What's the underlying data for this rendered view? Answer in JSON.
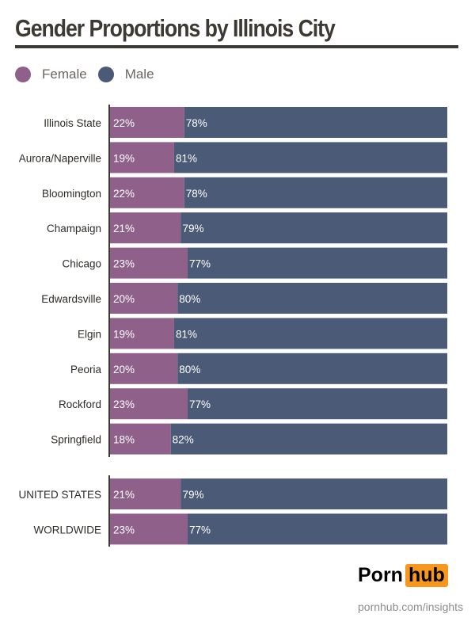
{
  "title": "Gender Proportions by Illinois City",
  "chart_data": {
    "type": "bar",
    "stacked": true,
    "orientation": "horizontal",
    "title": "Gender Proportions by Illinois City",
    "legend": {
      "position": "top-left",
      "entries": [
        "Female",
        "Male"
      ]
    },
    "colors": {
      "Female": "#8f618a",
      "Male": "#4b5a76"
    },
    "categories": [
      "Illinois State",
      "Aurora/Naperville",
      "Bloomington",
      "Champaign",
      "Chicago",
      "Edwardsville",
      "Elgin",
      "Peoria",
      "Rockford",
      "Springfield",
      "UNITED STATES",
      "WORLDWIDE"
    ],
    "series": [
      {
        "name": "Female",
        "values": [
          22,
          19,
          22,
          21,
          23,
          20,
          19,
          20,
          23,
          18,
          21,
          23
        ]
      },
      {
        "name": "Male",
        "values": [
          78,
          81,
          78,
          79,
          77,
          80,
          81,
          80,
          77,
          82,
          79,
          77
        ]
      }
    ],
    "xlim": [
      0,
      100
    ],
    "value_format": "%"
  },
  "footer": {
    "logo_left": "Porn",
    "logo_right": "hub",
    "url": "pornhub.com/insights"
  }
}
